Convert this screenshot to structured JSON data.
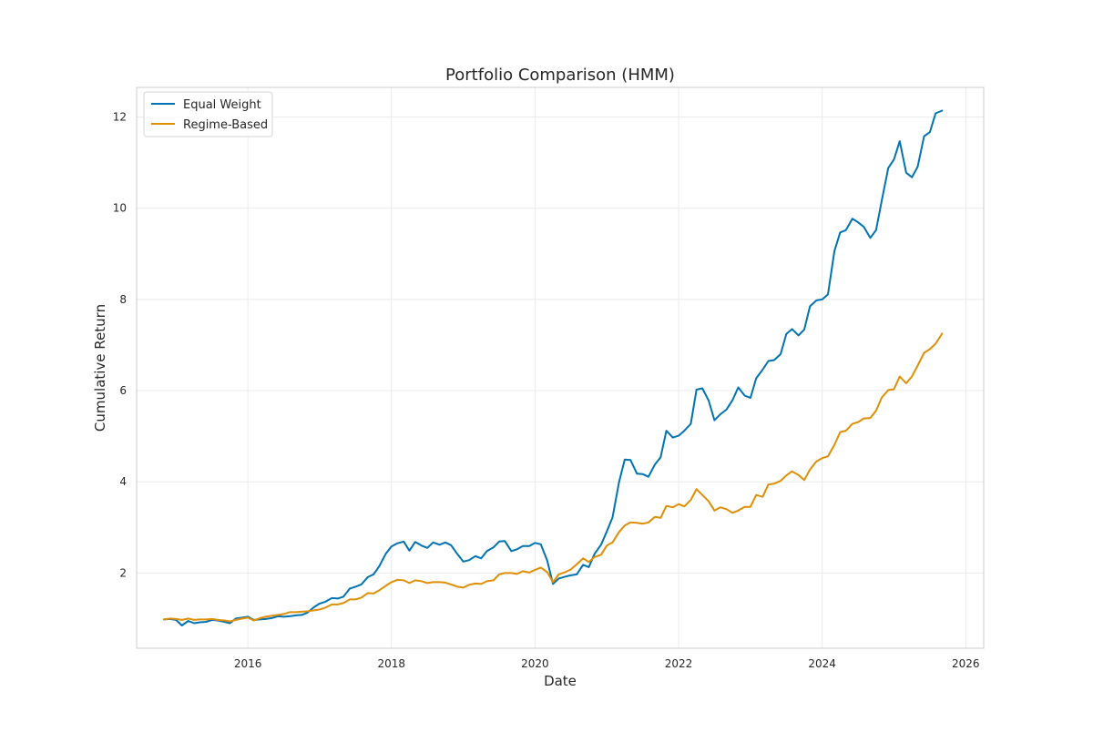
{
  "chart_data": {
    "type": "line",
    "title": "Portfolio Comparison (HMM)",
    "xlabel": "Date",
    "ylabel": "Cumulative Return",
    "xlim": [
      2014.45,
      2026.25
    ],
    "ylim": [
      0.35,
      12.65
    ],
    "xticks": [
      2016,
      2018,
      2020,
      2022,
      2024,
      2026
    ],
    "yticks": [
      2,
      4,
      6,
      8,
      10,
      12
    ],
    "grid": true,
    "legend": {
      "position": "upper-left"
    },
    "series": [
      {
        "name": "Equal Weight",
        "color": "#0173b2",
        "points": [
          [
            2014.83,
            0.98
          ],
          [
            2014.92,
            0.99
          ],
          [
            2015.0,
            0.97
          ],
          [
            2015.08,
            0.85
          ],
          [
            2015.17,
            0.95
          ],
          [
            2015.25,
            0.9
          ],
          [
            2015.33,
            0.92
          ],
          [
            2015.42,
            0.93
          ],
          [
            2015.5,
            0.97
          ],
          [
            2015.58,
            0.96
          ],
          [
            2015.67,
            0.93
          ],
          [
            2015.75,
            0.9
          ],
          [
            2015.83,
            1.0
          ],
          [
            2015.92,
            1.02
          ],
          [
            2016.0,
            1.04
          ],
          [
            2016.08,
            0.97
          ],
          [
            2016.17,
            0.98
          ],
          [
            2016.25,
            0.99
          ],
          [
            2016.33,
            1.01
          ],
          [
            2016.42,
            1.05
          ],
          [
            2016.5,
            1.04
          ],
          [
            2016.58,
            1.05
          ],
          [
            2016.67,
            1.07
          ],
          [
            2016.75,
            1.08
          ],
          [
            2016.83,
            1.13
          ],
          [
            2016.92,
            1.25
          ],
          [
            2017.0,
            1.33
          ],
          [
            2017.08,
            1.37
          ],
          [
            2017.17,
            1.45
          ],
          [
            2017.25,
            1.44
          ],
          [
            2017.33,
            1.48
          ],
          [
            2017.42,
            1.66
          ],
          [
            2017.5,
            1.7
          ],
          [
            2017.58,
            1.75
          ],
          [
            2017.67,
            1.91
          ],
          [
            2017.75,
            1.97
          ],
          [
            2017.83,
            2.15
          ],
          [
            2017.92,
            2.42
          ],
          [
            2018.0,
            2.58
          ],
          [
            2018.08,
            2.65
          ],
          [
            2018.17,
            2.69
          ],
          [
            2018.25,
            2.49
          ],
          [
            2018.33,
            2.68
          ],
          [
            2018.42,
            2.6
          ],
          [
            2018.5,
            2.55
          ],
          [
            2018.58,
            2.67
          ],
          [
            2018.67,
            2.62
          ],
          [
            2018.75,
            2.67
          ],
          [
            2018.83,
            2.61
          ],
          [
            2018.92,
            2.41
          ],
          [
            2019.0,
            2.25
          ],
          [
            2019.08,
            2.28
          ],
          [
            2019.17,
            2.37
          ],
          [
            2019.25,
            2.32
          ],
          [
            2019.33,
            2.48
          ],
          [
            2019.42,
            2.56
          ],
          [
            2019.5,
            2.69
          ],
          [
            2019.58,
            2.7
          ],
          [
            2019.67,
            2.48
          ],
          [
            2019.75,
            2.52
          ],
          [
            2019.83,
            2.59
          ],
          [
            2019.92,
            2.59
          ],
          [
            2020.0,
            2.66
          ],
          [
            2020.08,
            2.63
          ],
          [
            2020.17,
            2.27
          ],
          [
            2020.25,
            1.76
          ],
          [
            2020.33,
            1.88
          ],
          [
            2020.42,
            1.92
          ],
          [
            2020.5,
            1.95
          ],
          [
            2020.58,
            1.97
          ],
          [
            2020.67,
            2.18
          ],
          [
            2020.75,
            2.13
          ],
          [
            2020.83,
            2.42
          ],
          [
            2020.92,
            2.62
          ],
          [
            2021.0,
            2.91
          ],
          [
            2021.08,
            3.22
          ],
          [
            2021.17,
            3.99
          ],
          [
            2021.25,
            4.49
          ],
          [
            2021.33,
            4.48
          ],
          [
            2021.42,
            4.18
          ],
          [
            2021.5,
            4.17
          ],
          [
            2021.58,
            4.11
          ],
          [
            2021.67,
            4.38
          ],
          [
            2021.75,
            4.54
          ],
          [
            2021.83,
            5.12
          ],
          [
            2021.92,
            4.97
          ],
          [
            2022.0,
            5.01
          ],
          [
            2022.08,
            5.12
          ],
          [
            2022.17,
            5.27
          ],
          [
            2022.25,
            6.02
          ],
          [
            2022.33,
            6.05
          ],
          [
            2022.42,
            5.78
          ],
          [
            2022.5,
            5.35
          ],
          [
            2022.58,
            5.48
          ],
          [
            2022.67,
            5.59
          ],
          [
            2022.75,
            5.79
          ],
          [
            2022.83,
            6.07
          ],
          [
            2022.92,
            5.89
          ],
          [
            2023.0,
            5.84
          ],
          [
            2023.08,
            6.27
          ],
          [
            2023.17,
            6.46
          ],
          [
            2023.25,
            6.65
          ],
          [
            2023.33,
            6.67
          ],
          [
            2023.42,
            6.8
          ],
          [
            2023.5,
            7.24
          ],
          [
            2023.58,
            7.35
          ],
          [
            2023.67,
            7.21
          ],
          [
            2023.75,
            7.34
          ],
          [
            2023.83,
            7.85
          ],
          [
            2023.92,
            7.98
          ],
          [
            2024.0,
            8.0
          ],
          [
            2024.08,
            8.11
          ],
          [
            2024.17,
            9.06
          ],
          [
            2024.25,
            9.47
          ],
          [
            2024.33,
            9.52
          ],
          [
            2024.42,
            9.77
          ],
          [
            2024.5,
            9.69
          ],
          [
            2024.58,
            9.59
          ],
          [
            2024.67,
            9.35
          ],
          [
            2024.75,
            9.52
          ],
          [
            2024.83,
            10.17
          ],
          [
            2024.92,
            10.88
          ],
          [
            2025.0,
            11.07
          ],
          [
            2025.08,
            11.47
          ],
          [
            2025.17,
            10.78
          ],
          [
            2025.25,
            10.68
          ],
          [
            2025.33,
            10.91
          ],
          [
            2025.42,
            11.58
          ],
          [
            2025.5,
            11.67
          ],
          [
            2025.58,
            12.08
          ],
          [
            2025.67,
            12.14
          ]
        ]
      },
      {
        "name": "Regime-Based",
        "color": "#de8f05",
        "points": [
          [
            2014.83,
            0.98
          ],
          [
            2014.92,
            1.0
          ],
          [
            2015.0,
            0.99
          ],
          [
            2015.08,
            0.97
          ],
          [
            2015.17,
            1.0
          ],
          [
            2015.25,
            0.97
          ],
          [
            2015.33,
            0.98
          ],
          [
            2015.42,
            0.98
          ],
          [
            2015.5,
            0.99
          ],
          [
            2015.58,
            0.97
          ],
          [
            2015.67,
            0.96
          ],
          [
            2015.75,
            0.94
          ],
          [
            2015.83,
            0.97
          ],
          [
            2015.92,
            1.0
          ],
          [
            2016.0,
            1.02
          ],
          [
            2016.08,
            0.96
          ],
          [
            2016.17,
            1.01
          ],
          [
            2016.25,
            1.04
          ],
          [
            2016.33,
            1.06
          ],
          [
            2016.42,
            1.08
          ],
          [
            2016.5,
            1.1
          ],
          [
            2016.58,
            1.14
          ],
          [
            2016.67,
            1.14
          ],
          [
            2016.75,
            1.15
          ],
          [
            2016.83,
            1.16
          ],
          [
            2016.92,
            1.18
          ],
          [
            2017.0,
            1.2
          ],
          [
            2017.08,
            1.24
          ],
          [
            2017.17,
            1.31
          ],
          [
            2017.25,
            1.31
          ],
          [
            2017.33,
            1.34
          ],
          [
            2017.42,
            1.42
          ],
          [
            2017.5,
            1.42
          ],
          [
            2017.58,
            1.46
          ],
          [
            2017.67,
            1.56
          ],
          [
            2017.75,
            1.55
          ],
          [
            2017.83,
            1.62
          ],
          [
            2017.92,
            1.72
          ],
          [
            2018.0,
            1.8
          ],
          [
            2018.08,
            1.85
          ],
          [
            2018.17,
            1.84
          ],
          [
            2018.25,
            1.78
          ],
          [
            2018.33,
            1.84
          ],
          [
            2018.42,
            1.82
          ],
          [
            2018.5,
            1.78
          ],
          [
            2018.58,
            1.8
          ],
          [
            2018.67,
            1.8
          ],
          [
            2018.75,
            1.79
          ],
          [
            2018.83,
            1.75
          ],
          [
            2018.92,
            1.7
          ],
          [
            2019.0,
            1.68
          ],
          [
            2019.08,
            1.74
          ],
          [
            2019.17,
            1.77
          ],
          [
            2019.25,
            1.76
          ],
          [
            2019.33,
            1.82
          ],
          [
            2019.42,
            1.84
          ],
          [
            2019.5,
            1.97
          ],
          [
            2019.58,
            2.0
          ],
          [
            2019.67,
            2.0
          ],
          [
            2019.75,
            1.98
          ],
          [
            2019.83,
            2.04
          ],
          [
            2019.92,
            2.01
          ],
          [
            2020.0,
            2.07
          ],
          [
            2020.08,
            2.12
          ],
          [
            2020.17,
            2.02
          ],
          [
            2020.25,
            1.8
          ],
          [
            2020.33,
            1.97
          ],
          [
            2020.42,
            2.02
          ],
          [
            2020.5,
            2.08
          ],
          [
            2020.58,
            2.19
          ],
          [
            2020.67,
            2.32
          ],
          [
            2020.75,
            2.24
          ],
          [
            2020.83,
            2.35
          ],
          [
            2020.92,
            2.4
          ],
          [
            2021.0,
            2.6
          ],
          [
            2021.08,
            2.67
          ],
          [
            2021.17,
            2.9
          ],
          [
            2021.25,
            3.04
          ],
          [
            2021.33,
            3.11
          ],
          [
            2021.42,
            3.1
          ],
          [
            2021.5,
            3.08
          ],
          [
            2021.58,
            3.11
          ],
          [
            2021.67,
            3.23
          ],
          [
            2021.75,
            3.21
          ],
          [
            2021.83,
            3.47
          ],
          [
            2021.92,
            3.44
          ],
          [
            2022.0,
            3.51
          ],
          [
            2022.08,
            3.46
          ],
          [
            2022.17,
            3.6
          ],
          [
            2022.25,
            3.84
          ],
          [
            2022.33,
            3.71
          ],
          [
            2022.42,
            3.57
          ],
          [
            2022.5,
            3.37
          ],
          [
            2022.58,
            3.44
          ],
          [
            2022.67,
            3.4
          ],
          [
            2022.75,
            3.32
          ],
          [
            2022.83,
            3.37
          ],
          [
            2022.92,
            3.45
          ],
          [
            2023.0,
            3.45
          ],
          [
            2023.08,
            3.71
          ],
          [
            2023.17,
            3.67
          ],
          [
            2023.25,
            3.94
          ],
          [
            2023.33,
            3.96
          ],
          [
            2023.42,
            4.02
          ],
          [
            2023.5,
            4.14
          ],
          [
            2023.58,
            4.23
          ],
          [
            2023.67,
            4.15
          ],
          [
            2023.75,
            4.04
          ],
          [
            2023.83,
            4.27
          ],
          [
            2023.92,
            4.45
          ],
          [
            2024.0,
            4.52
          ],
          [
            2024.08,
            4.56
          ],
          [
            2024.17,
            4.81
          ],
          [
            2024.25,
            5.09
          ],
          [
            2024.33,
            5.12
          ],
          [
            2024.42,
            5.27
          ],
          [
            2024.5,
            5.31
          ],
          [
            2024.58,
            5.39
          ],
          [
            2024.67,
            5.4
          ],
          [
            2024.75,
            5.56
          ],
          [
            2024.83,
            5.85
          ],
          [
            2024.92,
            6.01
          ],
          [
            2025.0,
            6.03
          ],
          [
            2025.08,
            6.31
          ],
          [
            2025.17,
            6.16
          ],
          [
            2025.25,
            6.31
          ],
          [
            2025.33,
            6.55
          ],
          [
            2025.42,
            6.83
          ],
          [
            2025.5,
            6.91
          ],
          [
            2025.58,
            7.03
          ],
          [
            2025.67,
            7.25
          ]
        ]
      }
    ]
  }
}
